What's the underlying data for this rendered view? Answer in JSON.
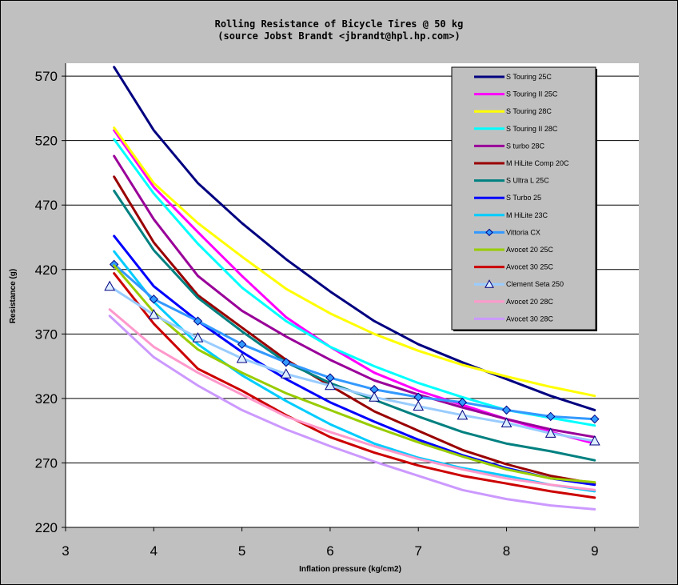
{
  "chart_data": {
    "type": "line",
    "title": "Rolling Resistance of Bicycle Tires @ 50 kg",
    "subtitle": "(source Jobst Brandt <jbrandt@hpl.hp.com>)",
    "xlabel": "Inflation pressure (kg/cm2)",
    "ylabel": "Resistance (g)",
    "xlim": [
      3,
      9.5
    ],
    "ylim": [
      220,
      580
    ],
    "xticks": [
      "3",
      "4",
      "5",
      "6",
      "7",
      "8",
      "9"
    ],
    "yticks": [
      "220",
      "270",
      "320",
      "370",
      "420",
      "470",
      "520",
      "570"
    ],
    "grid": "horizontal",
    "legend_position": "top-right",
    "series": [
      {
        "name": "S Touring 25C",
        "color": "#000080",
        "marker": "none",
        "x": [
          3.55,
          4,
          4.5,
          5,
          5.5,
          6,
          6.5,
          7,
          7.5,
          8,
          8.5,
          9
        ],
        "y": [
          577,
          528,
          487,
          456,
          428,
          403,
          380,
          362,
          348,
          335,
          322,
          311
        ]
      },
      {
        "name": "S Touring II 25C",
        "color": "#ff00ff",
        "marker": "none",
        "x": [
          3.55,
          4,
          4.5,
          5,
          5.5,
          6,
          6.5,
          7,
          7.5,
          8,
          8.5,
          9
        ],
        "y": [
          528,
          484,
          449,
          415,
          383,
          360,
          340,
          326,
          315,
          304,
          294,
          285
        ]
      },
      {
        "name": "S Touring 28C",
        "color": "#ffff00",
        "marker": "none",
        "x": [
          3.55,
          4,
          4.5,
          5,
          5.5,
          6,
          6.5,
          7,
          7.5,
          8,
          8.5,
          9
        ],
        "y": [
          530,
          487,
          456,
          430,
          405,
          386,
          370,
          357,
          346,
          337,
          329,
          322
        ]
      },
      {
        "name": "S Touring II 28C",
        "color": "#00ffff",
        "marker": "none",
        "x": [
          3.55,
          4,
          4.5,
          5,
          5.5,
          6,
          6.5,
          7,
          7.5,
          8,
          8.5,
          9
        ],
        "y": [
          521,
          479,
          440,
          406,
          380,
          360,
          345,
          332,
          321,
          311,
          305,
          299
        ]
      },
      {
        "name": "S turbo 28C",
        "color": "#990099",
        "marker": "none",
        "x": [
          3.55,
          4,
          4.5,
          5,
          5.5,
          6,
          6.5,
          7,
          7.5,
          8,
          8.5,
          9
        ],
        "y": [
          508,
          459,
          415,
          388,
          368,
          350,
          334,
          323,
          313,
          304,
          296,
          290
        ]
      },
      {
        "name": "M HiLite Comp 20C",
        "color": "#990000",
        "marker": "none",
        "x": [
          3.55,
          4,
          4.5,
          5,
          5.5,
          6,
          6.5,
          7,
          7.5,
          8,
          8.5,
          9
        ],
        "y": [
          492,
          441,
          400,
          375,
          350,
          330,
          310,
          295,
          280,
          269,
          260,
          254
        ]
      },
      {
        "name": "S Ultra L 25C",
        "color": "#008080",
        "marker": "none",
        "x": [
          3.55,
          4,
          4.5,
          5,
          5.5,
          6,
          6.5,
          7,
          7.5,
          8,
          8.5,
          9
        ],
        "y": [
          481,
          435,
          398,
          372,
          348,
          332,
          319,
          306,
          294,
          285,
          279,
          272
        ]
      },
      {
        "name": "S Turbo 25",
        "color": "#0000ff",
        "marker": "none",
        "x": [
          3.55,
          4,
          4.5,
          5,
          5.5,
          6,
          6.5,
          7,
          7.5,
          8,
          8.5,
          9
        ],
        "y": [
          446,
          407,
          380,
          356,
          335,
          317,
          302,
          288,
          276,
          266,
          258,
          253
        ]
      },
      {
        "name": "M HiLite 23C",
        "color": "#00ccff",
        "marker": "none",
        "x": [
          3.55,
          4,
          4.5,
          5,
          5.5,
          6,
          6.5,
          7,
          7.5,
          8,
          8.5,
          9
        ],
        "y": [
          434,
          395,
          362,
          338,
          318,
          300,
          285,
          274,
          266,
          260,
          253,
          248
        ]
      },
      {
        "name": "Vittoria CX",
        "color": "#3399ff",
        "marker": "diamond",
        "x": [
          3.55,
          4,
          4.5,
          5,
          5.5,
          6,
          6.5,
          7,
          7.5,
          8,
          8.5,
          9
        ],
        "y": [
          424,
          397,
          380,
          362,
          348,
          336,
          327,
          321,
          317,
          311,
          306,
          304
        ]
      },
      {
        "name": "Avocet 20 25C",
        "color": "#99cc00",
        "marker": "none",
        "x": [
          3.55,
          4,
          4.5,
          5,
          5.5,
          6,
          6.5,
          7,
          7.5,
          8,
          8.5,
          9
        ],
        "y": [
          423,
          387,
          358,
          340,
          324,
          311,
          298,
          286,
          275,
          265,
          258,
          255
        ]
      },
      {
        "name": "Avocet 30 25C",
        "color": "#cc0000",
        "marker": "none",
        "x": [
          3.55,
          4,
          4.5,
          5,
          5.5,
          6,
          6.5,
          7,
          7.5,
          8,
          8.5,
          9
        ],
        "y": [
          417,
          378,
          343,
          326,
          307,
          290,
          278,
          268,
          260,
          254,
          248,
          243
        ]
      },
      {
        "name": "Clement Seta 250",
        "color": "#99ccff",
        "marker": "triangle",
        "x": [
          3.5,
          4,
          4.5,
          5,
          5.5,
          6,
          6.5,
          7,
          7.5,
          8,
          8.5,
          9
        ],
        "y": [
          407,
          385,
          367,
          351,
          339,
          330,
          321,
          314,
          307,
          301,
          293,
          287
        ]
      },
      {
        "name": "Avocet 20 28C",
        "color": "#ff99cc",
        "marker": "none",
        "x": [
          3.5,
          4,
          4.5,
          5,
          5.5,
          6,
          6.5,
          7,
          7.5,
          8,
          8.5,
          9
        ],
        "y": [
          389,
          360,
          340,
          323,
          306,
          294,
          283,
          273,
          265,
          258,
          253,
          249
        ]
      },
      {
        "name": "Avocet 30 28C",
        "color": "#cc99ff",
        "marker": "none",
        "x": [
          3.5,
          4,
          4.5,
          5,
          5.5,
          6,
          6.5,
          7,
          7.5,
          8,
          8.5,
          9
        ],
        "y": [
          384,
          352,
          330,
          311,
          296,
          283,
          271,
          260,
          249,
          242,
          237,
          234
        ]
      }
    ]
  }
}
